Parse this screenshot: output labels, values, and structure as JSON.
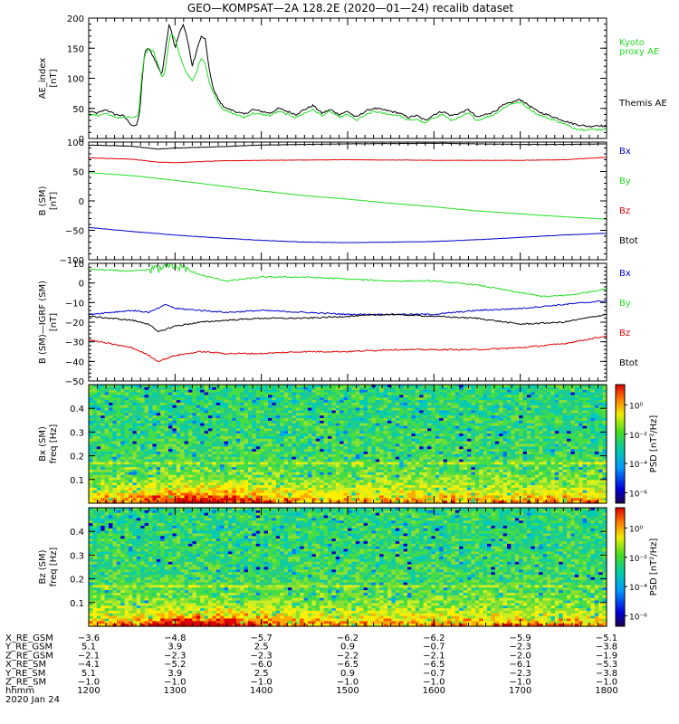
{
  "title": "GEO—KOMPSAT—2A 128.2E (2020—01—24) recalib dataset",
  "colors": {
    "black": "#000000",
    "green": "#22dd22",
    "red": "#dd0000",
    "blue": "#0000cc"
  },
  "chart_data": [
    {
      "type": "line",
      "panel": "ae",
      "ylabel": [
        "AE_index",
        "[nT]"
      ],
      "ylim": [
        0,
        200
      ],
      "yticks": [
        0,
        50,
        100,
        150,
        200
      ],
      "xlim": [
        1200,
        1800
      ],
      "legend": [
        "Kyoto",
        "proxy AE",
        "Themis AE"
      ],
      "series": [
        {
          "name": "Themis AE",
          "color": "black",
          "x": [
            1200,
            1210,
            1220,
            1230,
            1240,
            1245,
            1250,
            1255,
            1258,
            1260,
            1262,
            1265,
            1270,
            1275,
            1280,
            1285,
            1288,
            1290,
            1293,
            1295,
            1300,
            1305,
            1310,
            1315,
            1320,
            1325,
            1330,
            1335,
            1340,
            1345,
            1350,
            1355,
            1360,
            1370,
            1380,
            1390,
            1400,
            1410,
            1420,
            1430,
            1440,
            1450,
            1460,
            1470,
            1480,
            1490,
            1500,
            1510,
            1520,
            1530,
            1540,
            1550,
            1560,
            1570,
            1580,
            1590,
            1600,
            1610,
            1620,
            1630,
            1640,
            1650,
            1660,
            1670,
            1680,
            1690,
            1700,
            1710,
            1720,
            1730,
            1740,
            1750,
            1760,
            1770,
            1780,
            1790,
            1800
          ],
          "y": [
            45,
            42,
            48,
            40,
            38,
            30,
            22,
            20,
            35,
            60,
            100,
            145,
            150,
            135,
            120,
            105,
            140,
            160,
            188,
            185,
            150,
            175,
            190,
            160,
            120,
            145,
            170,
            165,
            110,
            80,
            65,
            55,
            50,
            45,
            40,
            48,
            45,
            42,
            50,
            45,
            40,
            48,
            55,
            42,
            48,
            40,
            45,
            35,
            45,
            50,
            48,
            45,
            42,
            35,
            38,
            30,
            40,
            45,
            38,
            42,
            48,
            35,
            40,
            45,
            55,
            60,
            65,
            55,
            45,
            40,
            35,
            30,
            25,
            22,
            20,
            22,
            20
          ]
        },
        {
          "name": "Kyoto proxy AE",
          "color": "green",
          "x": [
            1200,
            1210,
            1220,
            1230,
            1240,
            1245,
            1250,
            1255,
            1258,
            1260,
            1262,
            1265,
            1270,
            1275,
            1280,
            1285,
            1288,
            1290,
            1293,
            1295,
            1300,
            1305,
            1310,
            1315,
            1320,
            1325,
            1330,
            1335,
            1340,
            1345,
            1350,
            1355,
            1360,
            1370,
            1380,
            1390,
            1400,
            1410,
            1420,
            1430,
            1440,
            1450,
            1460,
            1470,
            1480,
            1490,
            1500,
            1510,
            1520,
            1530,
            1540,
            1550,
            1560,
            1570,
            1580,
            1590,
            1600,
            1610,
            1620,
            1630,
            1640,
            1650,
            1660,
            1670,
            1680,
            1690,
            1700,
            1710,
            1720,
            1730,
            1740,
            1750,
            1760,
            1770,
            1780,
            1790,
            1800
          ],
          "y": [
            40,
            38,
            42,
            35,
            35,
            35,
            35,
            35,
            40,
            80,
            110,
            140,
            150,
            145,
            125,
            100,
            110,
            130,
            160,
            175,
            165,
            140,
            120,
            105,
            95,
            110,
            135,
            125,
            90,
            75,
            60,
            50,
            45,
            40,
            35,
            42,
            40,
            38,
            45,
            40,
            35,
            42,
            48,
            38,
            45,
            35,
            40,
            30,
            38,
            45,
            42,
            40,
            38,
            30,
            32,
            25,
            35,
            40,
            30,
            35,
            42,
            30,
            35,
            40,
            50,
            58,
            60,
            50,
            40,
            35,
            30,
            25,
            18,
            15,
            15,
            15,
            15
          ]
        }
      ]
    },
    {
      "type": "line",
      "panel": "b_sm",
      "ylabel": [
        "B (SM)",
        "[nT]"
      ],
      "ylim": [
        -100,
        100
      ],
      "yticks": [
        -100,
        -50,
        0,
        50,
        100
      ],
      "xlim": [
        1200,
        1800
      ],
      "legend": [
        "Bx",
        "By",
        "Bz",
        "Btot"
      ],
      "series": [
        {
          "name": "Btot",
          "color": "black",
          "x": [
            1200,
            1250,
            1280,
            1300,
            1350,
            1400,
            1500,
            1600,
            1700,
            1750,
            1800
          ],
          "y": [
            95,
            93,
            88,
            90,
            92,
            95,
            97,
            98,
            96,
            96,
            97
          ]
        },
        {
          "name": "Bz",
          "color": "red",
          "x": [
            1200,
            1250,
            1280,
            1300,
            1350,
            1400,
            1500,
            1600,
            1700,
            1750,
            1800
          ],
          "y": [
            73,
            71,
            66,
            65,
            68,
            69,
            70,
            69,
            69,
            70,
            74
          ]
        },
        {
          "name": "By",
          "color": "green",
          "x": [
            1200,
            1250,
            1300,
            1350,
            1400,
            1450,
            1500,
            1550,
            1600,
            1650,
            1700,
            1750,
            1800
          ],
          "y": [
            48,
            43,
            35,
            26,
            17,
            9,
            3,
            -4,
            -10,
            -17,
            -22,
            -27,
            -31
          ]
        },
        {
          "name": "Bx",
          "color": "blue",
          "x": [
            1200,
            1250,
            1300,
            1350,
            1400,
            1450,
            1500,
            1550,
            1600,
            1650,
            1700,
            1750,
            1800
          ],
          "y": [
            -45,
            -52,
            -58,
            -63,
            -67,
            -70,
            -71,
            -70,
            -69,
            -66,
            -62,
            -58,
            -55
          ]
        }
      ]
    },
    {
      "type": "line",
      "panel": "b_igrf",
      "ylabel": [
        "B (SM)—IGRF (SM)",
        "[nT]"
      ],
      "ylim": [
        -50,
        10
      ],
      "yticks": [
        -50,
        -40,
        -30,
        -20,
        -10,
        0,
        10
      ],
      "xlim": [
        1200,
        1800
      ],
      "legend": [
        "Bx",
        "By",
        "Bz",
        "Btot"
      ],
      "series": [
        {
          "name": "By",
          "color": "green",
          "x": [
            1200,
            1250,
            1280,
            1300,
            1330,
            1360,
            1400,
            1450,
            1500,
            1550,
            1600,
            1650,
            1700,
            1730,
            1760,
            1800
          ],
          "y": [
            7,
            6,
            7,
            9,
            4,
            1,
            3,
            3,
            2,
            1,
            1,
            -1,
            -5,
            -7,
            -6,
            -3
          ]
        },
        {
          "name": "Bx",
          "color": "blue",
          "x": [
            1200,
            1250,
            1270,
            1290,
            1300,
            1330,
            1360,
            1400,
            1450,
            1500,
            1550,
            1600,
            1650,
            1700,
            1750,
            1800
          ],
          "y": [
            -16,
            -14,
            -15,
            -11,
            -13,
            -14,
            -15,
            -14,
            -15,
            -16,
            -16,
            -16,
            -14,
            -13,
            -11,
            -9
          ]
        },
        {
          "name": "Btot",
          "color": "black",
          "x": [
            1200,
            1250,
            1270,
            1280,
            1300,
            1330,
            1360,
            1400,
            1450,
            1500,
            1550,
            1600,
            1650,
            1700,
            1750,
            1800
          ],
          "y": [
            -17,
            -19,
            -21,
            -25,
            -22,
            -20,
            -19,
            -18,
            -18,
            -17,
            -16,
            -17,
            -18,
            -21,
            -20,
            -16
          ]
        },
        {
          "name": "Bz",
          "color": "red",
          "x": [
            1200,
            1250,
            1270,
            1280,
            1300,
            1330,
            1360,
            1400,
            1450,
            1500,
            1550,
            1600,
            1650,
            1700,
            1750,
            1800
          ],
          "y": [
            -29,
            -33,
            -37,
            -40,
            -37,
            -35,
            -36,
            -36,
            -35,
            -35,
            -34,
            -34,
            -34,
            -33,
            -31,
            -27
          ]
        }
      ]
    },
    {
      "type": "heatmap",
      "panel": "bx_spec",
      "ylabel": [
        "Bx (SM)",
        "freq [Hz]"
      ],
      "ylim": [
        0,
        0.5
      ],
      "yticks": [
        0.1,
        0.2,
        0.3,
        0.4
      ],
      "xlim": [
        1200,
        1800
      ],
      "colorbar": {
        "label": "PSD [nT²/Hz]",
        "ticks": [
          "10⁰",
          "10⁻²",
          "10⁻⁴",
          "10⁻⁶"
        ]
      }
    },
    {
      "type": "heatmap",
      "panel": "bz_spec",
      "ylabel": [
        "Bz (SM)",
        "freq [Hz]"
      ],
      "ylim": [
        0,
        0.5
      ],
      "yticks": [
        0.1,
        0.2,
        0.3,
        0.4
      ],
      "xlim": [
        1200,
        1800
      ],
      "colorbar": {
        "label": "PSD [nT²/Hz]",
        "ticks": [
          "10⁰",
          "10⁻²",
          "10⁻⁴",
          "10⁻⁶"
        ]
      }
    }
  ],
  "orbit_table": {
    "row_labels": [
      "X_RE_GSM",
      "Y_RE_GSM",
      "Z_RE_GSM",
      "X_RE_SM",
      "Y_RE_SM",
      "Z_RE_SM",
      "hhmm"
    ],
    "date_label": "2020 Jan 24",
    "columns": [
      {
        "values": [
          "−3.6",
          "5.1",
          "−2.1",
          "−4.1",
          "5.1",
          "−1.0",
          "1200"
        ]
      },
      {
        "values": [
          "−4.8",
          "3.9",
          "−2.3",
          "−5.2",
          "3.9",
          "−1.0",
          "1300"
        ]
      },
      {
        "values": [
          "−5.7",
          "2.5",
          "−2.3",
          "−6.0",
          "2.5",
          "−1.0",
          "1400"
        ]
      },
      {
        "values": [
          "−6.2",
          "0.9",
          "−2.2",
          "−6.5",
          "0.9",
          "−1.0",
          "1500"
        ]
      },
      {
        "values": [
          "−6.2",
          "−0.7",
          "−2.1",
          "−6.5",
          "−0.7",
          "−1.0",
          "1600"
        ]
      },
      {
        "values": [
          "−5.9",
          "−2.3",
          "−2.0",
          "−6.1",
          "−2.3",
          "−1.0",
          "1700"
        ]
      },
      {
        "values": [
          "−5.1",
          "−3.8",
          "−1.9",
          "−5.3",
          "−3.8",
          "−1.0",
          "1800"
        ]
      }
    ]
  }
}
